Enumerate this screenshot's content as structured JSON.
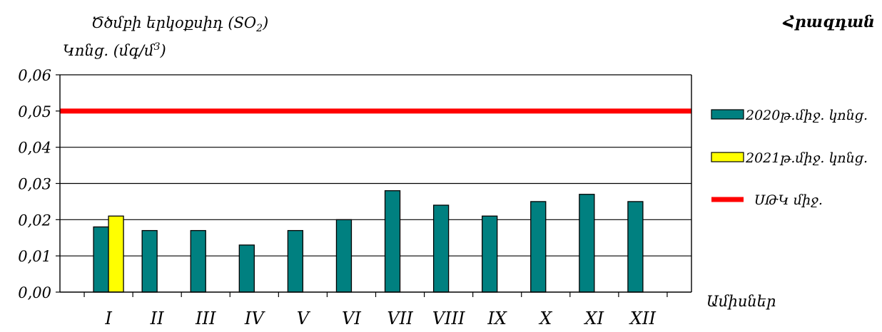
{
  "header": {
    "title_prefix": "Ծծմբի երկօքսիդ (SO",
    "title_sub": "2",
    "title_suffix": ")",
    "ylabel_prefix": "Կոնց. (մգ/մ",
    "ylabel_sup": "3",
    "ylabel_suffix": ")",
    "city": "Հրազդան"
  },
  "chart_data": {
    "type": "bar",
    "categories": [
      "I",
      "II",
      "III",
      "IV",
      "V",
      "VI",
      "VII",
      "VIII",
      "IX",
      "X",
      "XI",
      "XII"
    ],
    "series": [
      {
        "name": "2020թ.միջ. կոնց.",
        "color": "#008080",
        "values": [
          0.018,
          0.017,
          0.017,
          0.013,
          0.017,
          0.02,
          0.028,
          0.024,
          0.021,
          0.025,
          0.027,
          0.025
        ]
      },
      {
        "name": "2021թ.միջ. կոնց.",
        "color": "#ffff00",
        "values": [
          0.021,
          null,
          null,
          null,
          null,
          null,
          null,
          null,
          null,
          null,
          null,
          null
        ]
      }
    ],
    "reference_line": {
      "name": "ՍԹԿ միջ.",
      "value": 0.05,
      "color": "#ff0000"
    },
    "yticks": [
      "0,00",
      "0,01",
      "0,02",
      "0,03",
      "0,04",
      "0,05",
      "0,06"
    ],
    "ylim": [
      0,
      0.06
    ],
    "xlabel": "Ամիսներ",
    "grid": "horizontal",
    "legend_position": "right"
  }
}
